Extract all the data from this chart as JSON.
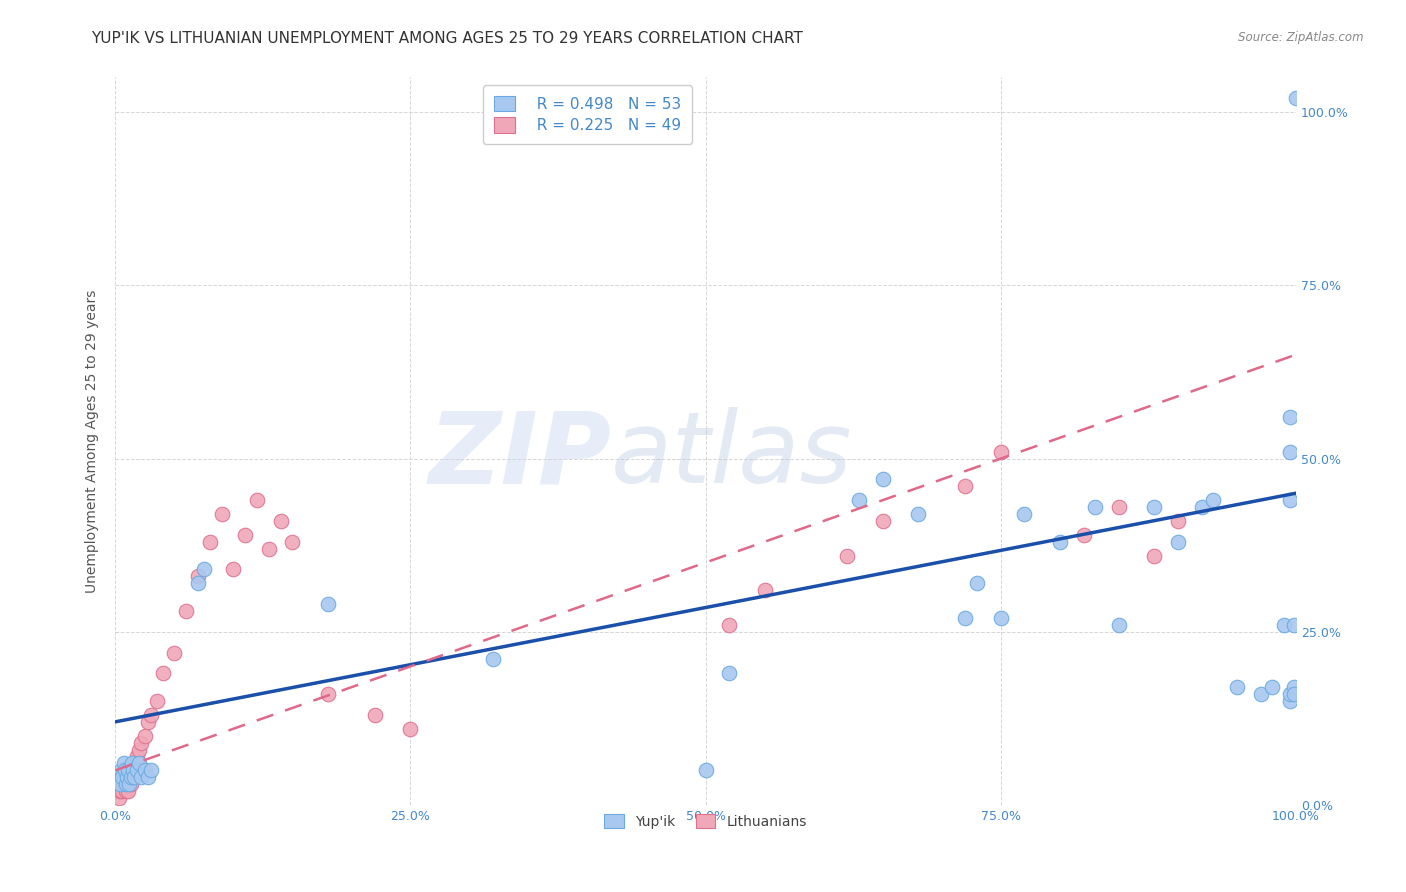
{
  "title": "YUP'IK VS LITHUANIAN UNEMPLOYMENT AMONG AGES 25 TO 29 YEARS CORRELATION CHART",
  "source": "Source: ZipAtlas.com",
  "ylabel": "Unemployment Among Ages 25 to 29 years",
  "xlim": [
    0.0,
    1.0
  ],
  "ylim": [
    0.0,
    1.05
  ],
  "watermark_zip": "ZIP",
  "watermark_atlas": "atlas",
  "legend_r1": "R = 0.498",
  "legend_n1": "N = 53",
  "legend_r2": "R = 0.225",
  "legend_n2": "N = 49",
  "yupik_color": "#a8c8f0",
  "yupik_edge_color": "#6aaae0",
  "lithuanian_color": "#f0a8b8",
  "lithuanian_edge_color": "#e07090",
  "yupik_line_color": "#1a4faa",
  "lithuanian_line_color": "#e06888",
  "background_color": "#ffffff",
  "grid_color": "#cccccc",
  "title_fontsize": 11,
  "axis_label_fontsize": 10,
  "tick_fontsize": 9,
  "tick_color": "#4488cc",
  "yupik_x": [
    0.003,
    0.004,
    0.005,
    0.006,
    0.007,
    0.008,
    0.009,
    0.01,
    0.011,
    0.012,
    0.013,
    0.014,
    0.015,
    0.016,
    0.018,
    0.02,
    0.022,
    0.025,
    0.028,
    0.03,
    0.07,
    0.075,
    0.18,
    0.32,
    0.5,
    0.52,
    0.63,
    0.65,
    0.68,
    0.72,
    0.73,
    0.75,
    0.77,
    0.8,
    0.83,
    0.85,
    0.88,
    0.9,
    0.92,
    0.93,
    0.95,
    0.97,
    0.98,
    0.99,
    0.995,
    0.995,
    0.995,
    0.995,
    0.995,
    0.998,
    0.998,
    0.998,
    1.0
  ],
  "yupik_y": [
    0.04,
    0.03,
    0.05,
    0.04,
    0.06,
    0.05,
    0.03,
    0.04,
    0.05,
    0.03,
    0.04,
    0.06,
    0.05,
    0.04,
    0.05,
    0.06,
    0.04,
    0.05,
    0.04,
    0.05,
    0.32,
    0.34,
    0.29,
    0.21,
    0.05,
    0.19,
    0.44,
    0.47,
    0.42,
    0.27,
    0.32,
    0.27,
    0.42,
    0.38,
    0.43,
    0.26,
    0.43,
    0.38,
    0.43,
    0.44,
    0.17,
    0.16,
    0.17,
    0.26,
    0.44,
    0.51,
    0.56,
    0.15,
    0.16,
    0.17,
    0.16,
    0.26,
    1.02
  ],
  "lithuanian_x": [
    0.002,
    0.003,
    0.004,
    0.005,
    0.006,
    0.007,
    0.008,
    0.009,
    0.01,
    0.011,
    0.012,
    0.013,
    0.014,
    0.015,
    0.016,
    0.017,
    0.018,
    0.019,
    0.02,
    0.022,
    0.025,
    0.028,
    0.03,
    0.035,
    0.04,
    0.05,
    0.06,
    0.07,
    0.08,
    0.09,
    0.1,
    0.11,
    0.12,
    0.13,
    0.14,
    0.15,
    0.18,
    0.22,
    0.25,
    0.52,
    0.55,
    0.62,
    0.65,
    0.72,
    0.75,
    0.82,
    0.85,
    0.88,
    0.9
  ],
  "lithuanian_y": [
    0.02,
    0.01,
    0.02,
    0.03,
    0.02,
    0.04,
    0.03,
    0.02,
    0.03,
    0.02,
    0.04,
    0.03,
    0.05,
    0.04,
    0.06,
    0.05,
    0.07,
    0.06,
    0.08,
    0.09,
    0.1,
    0.12,
    0.13,
    0.15,
    0.19,
    0.22,
    0.28,
    0.33,
    0.38,
    0.42,
    0.34,
    0.39,
    0.44,
    0.37,
    0.41,
    0.38,
    0.16,
    0.13,
    0.11,
    0.26,
    0.31,
    0.36,
    0.41,
    0.46,
    0.51,
    0.39,
    0.43,
    0.36,
    0.41
  ]
}
